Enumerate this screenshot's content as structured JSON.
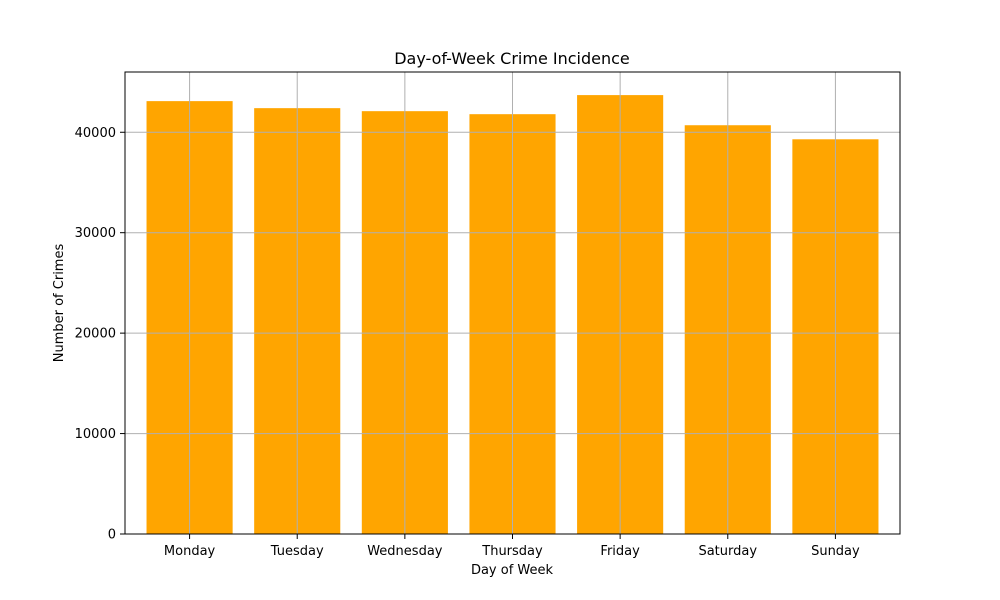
{
  "chart_data": {
    "type": "bar",
    "title": "Day-of-Week Crime Incidence",
    "xlabel": "Day of Week",
    "ylabel": "Number of Crimes",
    "categories": [
      "Monday",
      "Tuesday",
      "Wednesday",
      "Thursday",
      "Friday",
      "Saturday",
      "Sunday"
    ],
    "values": [
      43100,
      42400,
      42100,
      41800,
      43700,
      40700,
      39300
    ],
    "ylim": [
      0,
      46000
    ],
    "yticks": [
      0,
      10000,
      20000,
      30000,
      40000
    ],
    "ytick_labels": [
      "0",
      "10000",
      "20000",
      "30000",
      "40000"
    ],
    "grid": true,
    "bar_color": "#FFA500",
    "grid_color": "#b0b0b0"
  }
}
